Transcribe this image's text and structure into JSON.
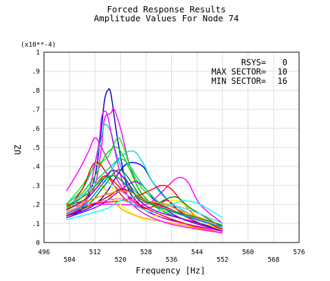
{
  "chart_data": {
    "type": "line",
    "title": "Forced Response Results",
    "subtitle": "Amplitude Values For Node 74",
    "xlabel": "Frequency [Hz]",
    "ylabel": "UZ",
    "y_multiplier": "(x10**-4)",
    "xlim": [
      496,
      576
    ],
    "ylim": [
      0,
      1
    ],
    "x_ticks_upper": [
      "496",
      "512",
      "528",
      "544",
      "560",
      "576"
    ],
    "x_ticks_lower": [
      "504",
      "520",
      "536",
      "552",
      "568"
    ],
    "y_ticks": [
      "0",
      ".1",
      ".2",
      ".3",
      ".4",
      ".5",
      ".6",
      ".7",
      ".8",
      ".9",
      "1"
    ],
    "grid": true,
    "annotations": [
      {
        "label": "RSYS=",
        "value": "0"
      },
      {
        "label": "MAX SECTOR=",
        "value": "10"
      },
      {
        "label": "MIN SECTOR=",
        "value": "16"
      }
    ],
    "series": [
      {
        "color": "#0000cc",
        "values": [
          [
            503,
            0.13
          ],
          [
            508,
            0.18
          ],
          [
            512,
            0.35
          ],
          [
            514,
            0.6
          ],
          [
            515,
            0.75
          ],
          [
            516,
            0.8
          ],
          [
            517,
            0.78
          ],
          [
            519,
            0.55
          ],
          [
            522,
            0.3
          ],
          [
            526,
            0.2
          ],
          [
            530,
            0.15
          ],
          [
            540,
            0.1
          ],
          [
            552,
            0.06
          ]
        ]
      },
      {
        "color": "#ff00ff",
        "values": [
          [
            503,
            0.27
          ],
          [
            507,
            0.38
          ],
          [
            510,
            0.48
          ],
          [
            512,
            0.55
          ],
          [
            514,
            0.5
          ],
          [
            517,
            0.4
          ],
          [
            520,
            0.3
          ],
          [
            525,
            0.2
          ],
          [
            535,
            0.12
          ],
          [
            552,
            0.06
          ]
        ]
      },
      {
        "color": "#ff00ff",
        "values": [
          [
            503,
            0.15
          ],
          [
            508,
            0.2
          ],
          [
            512,
            0.3
          ],
          [
            514,
            0.5
          ],
          [
            515,
            0.65
          ],
          [
            517,
            0.68
          ],
          [
            518,
            0.7
          ],
          [
            520,
            0.6
          ],
          [
            523,
            0.4
          ],
          [
            527,
            0.25
          ],
          [
            535,
            0.15
          ],
          [
            552,
            0.07
          ]
        ]
      },
      {
        "color": "#ff00ff",
        "values": [
          [
            503,
            0.18
          ],
          [
            510,
            0.2
          ],
          [
            520,
            0.2
          ],
          [
            528,
            0.2
          ],
          [
            532,
            0.25
          ],
          [
            535,
            0.3
          ],
          [
            538,
            0.34
          ],
          [
            541,
            0.32
          ],
          [
            545,
            0.2
          ],
          [
            552,
            0.1
          ]
        ]
      },
      {
        "color": "#00cccc",
        "values": [
          [
            503,
            0.2
          ],
          [
            508,
            0.28
          ],
          [
            512,
            0.42
          ],
          [
            514,
            0.55
          ],
          [
            515,
            0.62
          ],
          [
            517,
            0.58
          ],
          [
            519,
            0.45
          ],
          [
            523,
            0.3
          ],
          [
            530,
            0.2
          ],
          [
            540,
            0.12
          ],
          [
            552,
            0.07
          ]
        ]
      },
      {
        "color": "#0000ff",
        "values": [
          [
            503,
            0.14
          ],
          [
            510,
            0.18
          ],
          [
            515,
            0.25
          ],
          [
            520,
            0.38
          ],
          [
            523,
            0.42
          ],
          [
            527,
            0.4
          ],
          [
            530,
            0.32
          ],
          [
            535,
            0.22
          ],
          [
            540,
            0.15
          ],
          [
            552,
            0.08
          ]
        ]
      },
      {
        "color": "#00dddd",
        "values": [
          [
            503,
            0.16
          ],
          [
            510,
            0.22
          ],
          [
            516,
            0.35
          ],
          [
            520,
            0.45
          ],
          [
            524,
            0.48
          ],
          [
            527,
            0.42
          ],
          [
            530,
            0.32
          ],
          [
            535,
            0.22
          ],
          [
            545,
            0.12
          ],
          [
            552,
            0.08
          ]
        ]
      },
      {
        "color": "#00ff00",
        "values": [
          [
            503,
            0.2
          ],
          [
            508,
            0.3
          ],
          [
            512,
            0.4
          ],
          [
            516,
            0.45
          ],
          [
            519,
            0.55
          ],
          [
            521,
            0.5
          ],
          [
            523,
            0.4
          ],
          [
            527,
            0.28
          ],
          [
            535,
            0.18
          ],
          [
            552,
            0.08
          ]
        ]
      },
      {
        "color": "#00dd00",
        "values": [
          [
            503,
            0.18
          ],
          [
            508,
            0.26
          ],
          [
            512,
            0.35
          ],
          [
            515,
            0.45
          ],
          [
            518,
            0.5
          ],
          [
            520,
            0.48
          ],
          [
            523,
            0.38
          ],
          [
            527,
            0.25
          ],
          [
            535,
            0.15
          ],
          [
            552,
            0.07
          ]
        ]
      },
      {
        "color": "#ff0000",
        "values": [
          [
            503,
            0.17
          ],
          [
            508,
            0.28
          ],
          [
            511,
            0.4
          ],
          [
            513,
            0.42
          ],
          [
            515,
            0.38
          ],
          [
            518,
            0.3
          ],
          [
            522,
            0.22
          ],
          [
            527,
            0.18
          ],
          [
            532,
            0.2
          ],
          [
            535,
            0.22
          ],
          [
            540,
            0.15
          ],
          [
            552,
            0.07
          ]
        ]
      },
      {
        "color": "#ff0000",
        "values": [
          [
            503,
            0.15
          ],
          [
            510,
            0.2
          ],
          [
            520,
            0.22
          ],
          [
            526,
            0.25
          ],
          [
            530,
            0.28
          ],
          [
            533,
            0.3
          ],
          [
            536,
            0.28
          ],
          [
            540,
            0.2
          ],
          [
            545,
            0.12
          ],
          [
            552,
            0.07
          ]
        ]
      },
      {
        "color": "#ff0000",
        "values": [
          [
            503,
            0.2
          ],
          [
            508,
            0.22
          ],
          [
            512,
            0.3
          ],
          [
            515,
            0.35
          ],
          [
            518,
            0.32
          ],
          [
            522,
            0.25
          ],
          [
            528,
            0.18
          ],
          [
            540,
            0.1
          ],
          [
            552,
            0.05
          ]
        ]
      },
      {
        "color": "#ffff00",
        "values": [
          [
            503,
            0.16
          ],
          [
            508,
            0.22
          ],
          [
            512,
            0.3
          ],
          [
            515,
            0.34
          ],
          [
            517,
            0.3
          ],
          [
            520,
            0.2
          ],
          [
            524,
            0.15
          ],
          [
            528,
            0.12
          ],
          [
            532,
            0.15
          ],
          [
            536,
            0.22
          ],
          [
            540,
            0.2
          ],
          [
            545,
            0.12
          ],
          [
            552,
            0.06
          ]
        ]
      },
      {
        "color": "#ffaa00",
        "values": [
          [
            503,
            0.15
          ],
          [
            508,
            0.2
          ],
          [
            512,
            0.28
          ],
          [
            514,
            0.3
          ],
          [
            516,
            0.26
          ],
          [
            520,
            0.18
          ],
          [
            525,
            0.14
          ],
          [
            530,
            0.12
          ],
          [
            540,
            0.09
          ],
          [
            552,
            0.05
          ]
        ]
      },
      {
        "color": "#008800",
        "values": [
          [
            503,
            0.14
          ],
          [
            510,
            0.2
          ],
          [
            515,
            0.3
          ],
          [
            519,
            0.38
          ],
          [
            522,
            0.35
          ],
          [
            526,
            0.25
          ],
          [
            530,
            0.2
          ],
          [
            537,
            0.24
          ],
          [
            542,
            0.18
          ],
          [
            552,
            0.08
          ]
        ]
      },
      {
        "color": "#8800ff",
        "values": [
          [
            503,
            0.13
          ],
          [
            510,
            0.17
          ],
          [
            514,
            0.2
          ],
          [
            518,
            0.25
          ],
          [
            522,
            0.3
          ],
          [
            525,
            0.32
          ],
          [
            528,
            0.28
          ],
          [
            532,
            0.2
          ],
          [
            540,
            0.12
          ],
          [
            552,
            0.06
          ]
        ]
      },
      {
        "color": "#ff00ff",
        "values": [
          [
            503,
            0.14
          ],
          [
            509,
            0.22
          ],
          [
            513,
            0.5
          ],
          [
            514,
            0.65
          ],
          [
            515,
            0.69
          ],
          [
            516,
            0.66
          ],
          [
            518,
            0.5
          ],
          [
            521,
            0.3
          ],
          [
            525,
            0.18
          ],
          [
            535,
            0.1
          ],
          [
            552,
            0.05
          ]
        ]
      },
      {
        "color": "#66ccff",
        "values": [
          [
            503,
            0.19
          ],
          [
            508,
            0.25
          ],
          [
            512,
            0.3
          ],
          [
            515,
            0.32
          ],
          [
            518,
            0.3
          ],
          [
            522,
            0.25
          ],
          [
            528,
            0.22
          ],
          [
            535,
            0.2
          ],
          [
            540,
            0.18
          ],
          [
            545,
            0.15
          ],
          [
            552,
            0.1
          ]
        ]
      },
      {
        "color": "#00cc88",
        "values": [
          [
            503,
            0.17
          ],
          [
            508,
            0.24
          ],
          [
            512,
            0.32
          ],
          [
            517,
            0.4
          ],
          [
            520,
            0.44
          ],
          [
            523,
            0.4
          ],
          [
            527,
            0.3
          ],
          [
            533,
            0.2
          ],
          [
            542,
            0.13
          ],
          [
            552,
            0.08
          ]
        ]
      },
      {
        "color": "#00ffff",
        "values": [
          [
            503,
            0.12
          ],
          [
            510,
            0.15
          ],
          [
            516,
            0.18
          ],
          [
            520,
            0.22
          ],
          [
            524,
            0.2
          ],
          [
            530,
            0.16
          ],
          [
            536,
            0.2
          ],
          [
            540,
            0.22
          ],
          [
            545,
            0.2
          ],
          [
            552,
            0.13
          ]
        ]
      },
      {
        "color": "#cc0000",
        "values": [
          [
            503,
            0.14
          ],
          [
            510,
            0.19
          ],
          [
            516,
            0.24
          ],
          [
            520,
            0.28
          ],
          [
            524,
            0.26
          ],
          [
            528,
            0.22
          ],
          [
            535,
            0.18
          ],
          [
            545,
            0.1
          ],
          [
            552,
            0.06
          ]
        ]
      },
      {
        "color": "#ff66cc",
        "values": [
          [
            503,
            0.16
          ],
          [
            510,
            0.2
          ],
          [
            515,
            0.22
          ],
          [
            520,
            0.23
          ],
          [
            525,
            0.22
          ],
          [
            530,
            0.2
          ],
          [
            536,
            0.17
          ],
          [
            545,
            0.12
          ],
          [
            552,
            0.08
          ]
        ]
      },
      {
        "color": "#0088ff",
        "values": [
          [
            503,
            0.15
          ],
          [
            509,
            0.2
          ],
          [
            514,
            0.3
          ],
          [
            517,
            0.35
          ],
          [
            520,
            0.33
          ],
          [
            524,
            0.26
          ],
          [
            530,
            0.2
          ],
          [
            540,
            0.14
          ],
          [
            552,
            0.08
          ]
        ]
      },
      {
        "color": "#ff8800",
        "values": [
          [
            503,
            0.18
          ],
          [
            510,
            0.22
          ],
          [
            515,
            0.25
          ],
          [
            520,
            0.27
          ],
          [
            524,
            0.26
          ],
          [
            528,
            0.22
          ],
          [
            534,
            0.2
          ],
          [
            540,
            0.16
          ],
          [
            552,
            0.09
          ]
        ]
      },
      {
        "color": "#8800cc",
        "values": [
          [
            503,
            0.17
          ],
          [
            510,
            0.24
          ],
          [
            515,
            0.34
          ],
          [
            518,
            0.38
          ],
          [
            522,
            0.32
          ],
          [
            526,
            0.22
          ],
          [
            532,
            0.16
          ],
          [
            545,
            0.1
          ],
          [
            552,
            0.06
          ]
        ]
      },
      {
        "color": "#00aa00",
        "values": [
          [
            503,
            0.19
          ],
          [
            510,
            0.26
          ],
          [
            514,
            0.33
          ],
          [
            518,
            0.35
          ],
          [
            522,
            0.3
          ],
          [
            526,
            0.23
          ],
          [
            533,
            0.18
          ],
          [
            542,
            0.14
          ],
          [
            552,
            0.09
          ]
        ]
      }
    ]
  }
}
